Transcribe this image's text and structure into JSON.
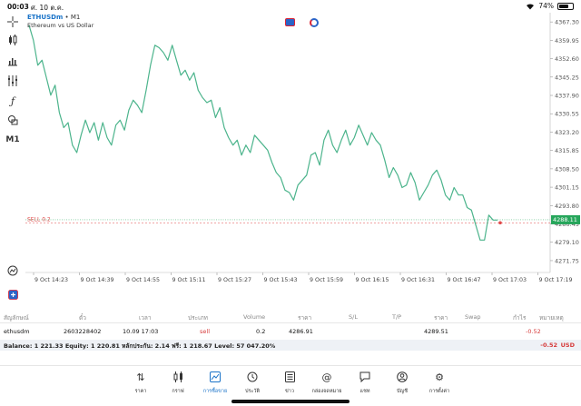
{
  "status_bar": {
    "time": "00:03",
    "date": "ศ. 10 ต.ค.",
    "battery": "74%",
    "battery_level": 0.74
  },
  "chart": {
    "symbol": "ETHUSDm",
    "timeframe_suffix": " • M1",
    "description": "Ethereum vs US Dollar",
    "timeframe_button": "M1",
    "sell_label": "SELL 0.2",
    "current_price": "4288.11",
    "colors": {
      "line": "#4cb48c",
      "sell": "#e04848",
      "price_bg": "#26a65b"
    }
  },
  "chart_data": {
    "type": "line",
    "ylim": [
      4267,
      4371
    ],
    "y_ticks": [
      "4367.30",
      "4359.95",
      "4352.60",
      "4345.25",
      "4337.90",
      "4330.55",
      "4323.20",
      "4315.85",
      "4308.50",
      "4301.15",
      "4293.80",
      "4286.45",
      "4279.10",
      "4271.75"
    ],
    "x_ticks": [
      "9 Oct 14:23",
      "9 Oct 14:39",
      "9 Oct 14:55",
      "9 Oct 15:11",
      "9 Oct 15:27",
      "9 Oct 15:43",
      "9 Oct 15:59",
      "9 Oct 16:15",
      "9 Oct 16:31",
      "9 Oct 16:47",
      "9 Oct 17:03",
      "9 Oct 17:19"
    ],
    "sell_entry": 4286.91,
    "current": 4288.11,
    "values": [
      4366,
      4360,
      4350,
      4352,
      4345,
      4338,
      4342,
      4331,
      4325,
      4327,
      4318,
      4315,
      4322,
      4328,
      4323,
      4327,
      4320,
      4327,
      4321,
      4318,
      4326,
      4328,
      4324,
      4332,
      4336,
      4334,
      4331,
      4340,
      4350,
      4358,
      4357,
      4355,
      4352,
      4358,
      4352,
      4346,
      4348,
      4344,
      4347,
      4340,
      4337,
      4335,
      4336,
      4329,
      4333,
      4325,
      4321,
      4318,
      4320,
      4314,
      4318,
      4315,
      4322,
      4320,
      4318,
      4316,
      4311,
      4307,
      4305,
      4300,
      4299,
      4296,
      4302,
      4304,
      4306,
      4314,
      4315,
      4310,
      4320,
      4324,
      4318,
      4315,
      4320,
      4324,
      4318,
      4321,
      4326,
      4322,
      4318,
      4323,
      4320,
      4318,
      4312,
      4305,
      4309,
      4306,
      4301,
      4302,
      4307,
      4303,
      4296,
      4299,
      4302,
      4306,
      4308,
      4304,
      4298,
      4296,
      4301,
      4298,
      4298,
      4293,
      4292,
      4286,
      4280,
      4280,
      4290,
      4288,
      4288
    ]
  },
  "trades": {
    "headers": {
      "symbol": "สัญลักษณ์",
      "ticket": "ตั๋ว",
      "time": "เวลา",
      "type": "ประเภท",
      "volume": "Volume",
      "price": "ราคา",
      "sl": "S/L",
      "tp": "T/P",
      "cur_price": "ราคา",
      "swap": "Swap",
      "profit": "กำไร",
      "comment": "หมายเหตุ"
    },
    "row": {
      "symbol": "ethusdm",
      "ticket": "2603228402",
      "time": "10.09 17:03",
      "type": "sell",
      "volume": "0.2",
      "price": "4286.91",
      "cur_price": "4289.51",
      "profit": "-0.52"
    },
    "balance": "Balance: 1 221.33 Equity: 1 220.81 หลักประกัน: 2.14 ฟรี: 1 218.67 Level: 57 047.20%",
    "balance_value": "-0.52",
    "currency": "USD"
  },
  "nav": [
    {
      "label": "ราคา",
      "icon": "quotes-icon"
    },
    {
      "label": "กราฟ",
      "icon": "chart-icon"
    },
    {
      "label": "การซื้อขาย",
      "icon": "trade-icon"
    },
    {
      "label": "ประวัติ",
      "icon": "history-icon"
    },
    {
      "label": "ข่าว",
      "icon": "news-icon"
    },
    {
      "label": "กล่องจดหมาย",
      "icon": "mailbox-icon"
    },
    {
      "label": "แชท",
      "icon": "chat-icon"
    },
    {
      "label": "บัญชี",
      "icon": "account-icon"
    },
    {
      "label": "การตั้งค่า",
      "icon": "settings-icon"
    }
  ]
}
